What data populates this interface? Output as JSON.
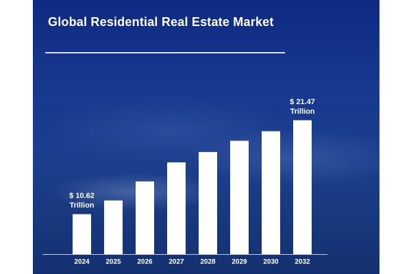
{
  "chart_data": {
    "type": "bar",
    "title": "Global Residential Real Estate Market",
    "categories": [
      "2024",
      "2025",
      "2026",
      "2027",
      "2028",
      "2029",
      "2030",
      "2032"
    ],
    "values": [
      10.62,
      12.2,
      14.4,
      16.6,
      17.8,
      19.1,
      20.2,
      21.47
    ],
    "data_labels": [
      {
        "index": 0,
        "amount": "$ 10.62",
        "unit": "Trillion"
      },
      {
        "index": 7,
        "amount": "$ 21.47",
        "unit": "Trillion"
      }
    ],
    "ylim": [
      6,
      22.7
    ],
    "bar_color": "#ffffff",
    "background_color": "#1a3a8f",
    "grid": false,
    "legend": "none"
  }
}
